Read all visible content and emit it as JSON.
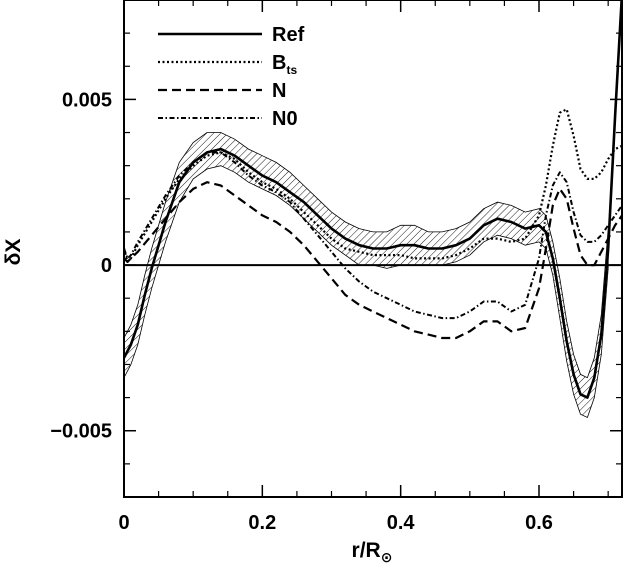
{
  "chart_data": {
    "type": "line",
    "xlabel_main": "r/R",
    "xlabel_sub": "⊙",
    "ylabel": "δX",
    "xlim": [
      0,
      0.72
    ],
    "ylim": [
      -0.007,
      0.008
    ],
    "x_ticks": [
      0,
      0.2,
      0.4,
      0.6
    ],
    "x_tick_labels": [
      "0",
      "0.2",
      "0.4",
      "0.6"
    ],
    "y_ticks": [
      -0.005,
      0,
      0.005
    ],
    "y_tick_labels": [
      "−0.005",
      "0",
      "0.005"
    ],
    "legend_position": "top-left",
    "zero_line": 0,
    "series": [
      {
        "name": "Ref",
        "style": "solid",
        "points": [
          [
            0,
            -0.0028
          ],
          [
            0.01,
            -0.0024
          ],
          [
            0.02,
            -0.0018
          ],
          [
            0.03,
            -0.0009
          ],
          [
            0.04,
            -0.0001
          ],
          [
            0.05,
            0.0006
          ],
          [
            0.06,
            0.0013
          ],
          [
            0.07,
            0.0019
          ],
          [
            0.08,
            0.0025
          ],
          [
            0.1,
            0.0031
          ],
          [
            0.12,
            0.0034
          ],
          [
            0.14,
            0.0035
          ],
          [
            0.16,
            0.0033
          ],
          [
            0.18,
            0.003
          ],
          [
            0.2,
            0.0027
          ],
          [
            0.22,
            0.0025
          ],
          [
            0.24,
            0.0022
          ],
          [
            0.26,
            0.0019
          ],
          [
            0.28,
            0.0015
          ],
          [
            0.3,
            0.0011
          ],
          [
            0.32,
            0.0008
          ],
          [
            0.34,
            0.0006
          ],
          [
            0.36,
            0.0005
          ],
          [
            0.38,
            0.0005
          ],
          [
            0.4,
            0.0006
          ],
          [
            0.42,
            0.0006
          ],
          [
            0.44,
            0.0005
          ],
          [
            0.46,
            0.0005
          ],
          [
            0.48,
            0.0006
          ],
          [
            0.5,
            0.0008
          ],
          [
            0.52,
            0.0012
          ],
          [
            0.54,
            0.0014
          ],
          [
            0.56,
            0.0013
          ],
          [
            0.58,
            0.0011
          ],
          [
            0.6,
            0.0012
          ],
          [
            0.61,
            0.001
          ],
          [
            0.62,
            0.0002
          ],
          [
            0.63,
            -0.001
          ],
          [
            0.64,
            -0.0023
          ],
          [
            0.65,
            -0.0033
          ],
          [
            0.66,
            -0.0039
          ],
          [
            0.67,
            -0.004
          ],
          [
            0.68,
            -0.0034
          ],
          [
            0.69,
            -0.0021
          ],
          [
            0.7,
            0.0005
          ],
          [
            0.71,
            0.0045
          ],
          [
            0.72,
            0.0082
          ]
        ]
      },
      {
        "name": "B",
        "name_sub": "ts",
        "style": "dotted",
        "points": [
          [
            0,
            0.0005
          ],
          [
            0.005,
            0.0001
          ],
          [
            0.01,
            0.0002
          ],
          [
            0.02,
            0.0006
          ],
          [
            0.04,
            0.0013
          ],
          [
            0.06,
            0.002
          ],
          [
            0.08,
            0.0026
          ],
          [
            0.1,
            0.003
          ],
          [
            0.12,
            0.0033
          ],
          [
            0.14,
            0.0034
          ],
          [
            0.16,
            0.0032
          ],
          [
            0.18,
            0.0028
          ],
          [
            0.2,
            0.0025
          ],
          [
            0.22,
            0.0023
          ],
          [
            0.24,
            0.002
          ],
          [
            0.26,
            0.0016
          ],
          [
            0.28,
            0.0012
          ],
          [
            0.3,
            0.0008
          ],
          [
            0.32,
            0.0005
          ],
          [
            0.34,
            0.0004
          ],
          [
            0.36,
            0.0003
          ],
          [
            0.38,
            0.0003
          ],
          [
            0.4,
            0.0003
          ],
          [
            0.42,
            0.0002
          ],
          [
            0.44,
            0.0002
          ],
          [
            0.46,
            0.0002
          ],
          [
            0.48,
            0.0003
          ],
          [
            0.5,
            0.0005
          ],
          [
            0.52,
            0.0008
          ],
          [
            0.54,
            0.0008
          ],
          [
            0.56,
            0.0007
          ],
          [
            0.58,
            0.0008
          ],
          [
            0.6,
            0.0015
          ],
          [
            0.61,
            0.0024
          ],
          [
            0.62,
            0.0036
          ],
          [
            0.63,
            0.0046
          ],
          [
            0.64,
            0.0047
          ],
          [
            0.65,
            0.0039
          ],
          [
            0.66,
            0.0029
          ],
          [
            0.67,
            0.0026
          ],
          [
            0.68,
            0.0026
          ],
          [
            0.69,
            0.0028
          ],
          [
            0.7,
            0.0032
          ],
          [
            0.71,
            0.0035
          ],
          [
            0.72,
            0.0036
          ]
        ]
      },
      {
        "name": "N",
        "style": "dashed",
        "points": [
          [
            0,
            0.0002
          ],
          [
            0.005,
            0.0001
          ],
          [
            0.01,
            0.0002
          ],
          [
            0.02,
            0.0004
          ],
          [
            0.04,
            0.0009
          ],
          [
            0.06,
            0.0014
          ],
          [
            0.08,
            0.0019
          ],
          [
            0.1,
            0.0023
          ],
          [
            0.12,
            0.0025
          ],
          [
            0.14,
            0.0024
          ],
          [
            0.16,
            0.0021
          ],
          [
            0.18,
            0.0018
          ],
          [
            0.2,
            0.0015
          ],
          [
            0.22,
            0.0013
          ],
          [
            0.24,
            0.001
          ],
          [
            0.26,
            0.0006
          ],
          [
            0.28,
            0.0001
          ],
          [
            0.3,
            -0.0004
          ],
          [
            0.32,
            -0.0009
          ],
          [
            0.34,
            -0.0012
          ],
          [
            0.36,
            -0.0014
          ],
          [
            0.38,
            -0.0016
          ],
          [
            0.4,
            -0.0018
          ],
          [
            0.42,
            -0.002
          ],
          [
            0.44,
            -0.0021
          ],
          [
            0.46,
            -0.0022
          ],
          [
            0.48,
            -0.0022
          ],
          [
            0.5,
            -0.002
          ],
          [
            0.52,
            -0.0017
          ],
          [
            0.54,
            -0.0017
          ],
          [
            0.56,
            -0.002
          ],
          [
            0.58,
            -0.0019
          ],
          [
            0.6,
            -0.0007
          ],
          [
            0.61,
            0.0005
          ],
          [
            0.62,
            0.0018
          ],
          [
            0.63,
            0.0023
          ],
          [
            0.64,
            0.002
          ],
          [
            0.65,
            0.0011
          ],
          [
            0.66,
            0.0003
          ],
          [
            0.67,
            0.0
          ],
          [
            0.68,
            0.0
          ],
          [
            0.69,
            0.0004
          ],
          [
            0.7,
            0.0008
          ],
          [
            0.71,
            0.0012
          ],
          [
            0.72,
            0.0015
          ]
        ]
      },
      {
        "name": "N0",
        "style": "dash-dot",
        "points": [
          [
            0,
            0.0005
          ],
          [
            0.005,
            0.0002
          ],
          [
            0.01,
            0.0003
          ],
          [
            0.02,
            0.0007
          ],
          [
            0.04,
            0.0014
          ],
          [
            0.06,
            0.0021
          ],
          [
            0.08,
            0.0027
          ],
          [
            0.1,
            0.0031
          ],
          [
            0.12,
            0.0034
          ],
          [
            0.14,
            0.0034
          ],
          [
            0.16,
            0.0031
          ],
          [
            0.18,
            0.0027
          ],
          [
            0.2,
            0.0024
          ],
          [
            0.22,
            0.0022
          ],
          [
            0.24,
            0.0019
          ],
          [
            0.26,
            0.0014
          ],
          [
            0.28,
            0.0009
          ],
          [
            0.3,
            0.0004
          ],
          [
            0.32,
            -0.0001
          ],
          [
            0.34,
            -0.0005
          ],
          [
            0.36,
            -0.0008
          ],
          [
            0.38,
            -0.001
          ],
          [
            0.4,
            -0.0012
          ],
          [
            0.42,
            -0.0014
          ],
          [
            0.44,
            -0.0015
          ],
          [
            0.46,
            -0.0016
          ],
          [
            0.48,
            -0.0016
          ],
          [
            0.5,
            -0.0014
          ],
          [
            0.52,
            -0.0011
          ],
          [
            0.54,
            -0.0011
          ],
          [
            0.56,
            -0.0014
          ],
          [
            0.58,
            -0.0012
          ],
          [
            0.6,
            0.0002
          ],
          [
            0.61,
            0.0015
          ],
          [
            0.62,
            0.0024
          ],
          [
            0.63,
            0.0028
          ],
          [
            0.64,
            0.0025
          ],
          [
            0.65,
            0.0016
          ],
          [
            0.66,
            0.0009
          ],
          [
            0.67,
            0.0007
          ],
          [
            0.68,
            0.0007
          ],
          [
            0.69,
            0.0009
          ],
          [
            0.7,
            0.0012
          ],
          [
            0.71,
            0.0015
          ],
          [
            0.72,
            0.0018
          ]
        ]
      }
    ],
    "band": {
      "of_series": "Ref",
      "fill": "hatched",
      "points": [
        [
          0,
          -0.0034,
          -0.0022
        ],
        [
          0.01,
          -0.003,
          -0.0018
        ],
        [
          0.02,
          -0.0024,
          -0.0012
        ],
        [
          0.03,
          -0.0015,
          -0.0003
        ],
        [
          0.04,
          -0.0007,
          0.0005
        ],
        [
          0.05,
          0.0,
          0.0012
        ],
        [
          0.06,
          0.0007,
          0.0019
        ],
        [
          0.07,
          0.0013,
          0.0025
        ],
        [
          0.08,
          0.0019,
          0.0031
        ],
        [
          0.1,
          0.0026,
          0.0037
        ],
        [
          0.12,
          0.0029,
          0.004
        ],
        [
          0.14,
          0.003,
          0.004
        ],
        [
          0.16,
          0.0028,
          0.0038
        ],
        [
          0.18,
          0.0025,
          0.0035
        ],
        [
          0.2,
          0.0023,
          0.0033
        ],
        [
          0.22,
          0.0021,
          0.0031
        ],
        [
          0.24,
          0.0018,
          0.0028
        ],
        [
          0.26,
          0.0014,
          0.0024
        ],
        [
          0.28,
          0.001,
          0.002
        ],
        [
          0.3,
          0.0006,
          0.0016
        ],
        [
          0.32,
          0.0003,
          0.0013
        ],
        [
          0.34,
          0.0,
          0.0011
        ],
        [
          0.36,
          0.0,
          0.001
        ],
        [
          0.38,
          -0.0001,
          0.001
        ],
        [
          0.4,
          0.0,
          0.0012
        ],
        [
          0.42,
          0.0,
          0.0012
        ],
        [
          0.44,
          0.0,
          0.001
        ],
        [
          0.46,
          0.0,
          0.001
        ],
        [
          0.48,
          0.0001,
          0.0011
        ],
        [
          0.5,
          0.0003,
          0.0013
        ],
        [
          0.52,
          0.0007,
          0.0017
        ],
        [
          0.54,
          0.0009,
          0.0019
        ],
        [
          0.56,
          0.0008,
          0.0018
        ],
        [
          0.58,
          0.0006,
          0.0016
        ],
        [
          0.6,
          0.0007,
          0.0017
        ],
        [
          0.61,
          0.0005,
          0.0015
        ],
        [
          0.62,
          -0.0003,
          0.0007
        ],
        [
          0.63,
          -0.0016,
          -0.0004
        ],
        [
          0.64,
          -0.0029,
          -0.0017
        ],
        [
          0.65,
          -0.0039,
          -0.0027
        ],
        [
          0.66,
          -0.0045,
          -0.0033
        ],
        [
          0.67,
          -0.0046,
          -0.0034
        ],
        [
          0.68,
          -0.004,
          -0.0028
        ],
        [
          0.69,
          -0.0027,
          -0.0015
        ],
        [
          0.7,
          -0.0001,
          0.0011
        ]
      ]
    }
  }
}
